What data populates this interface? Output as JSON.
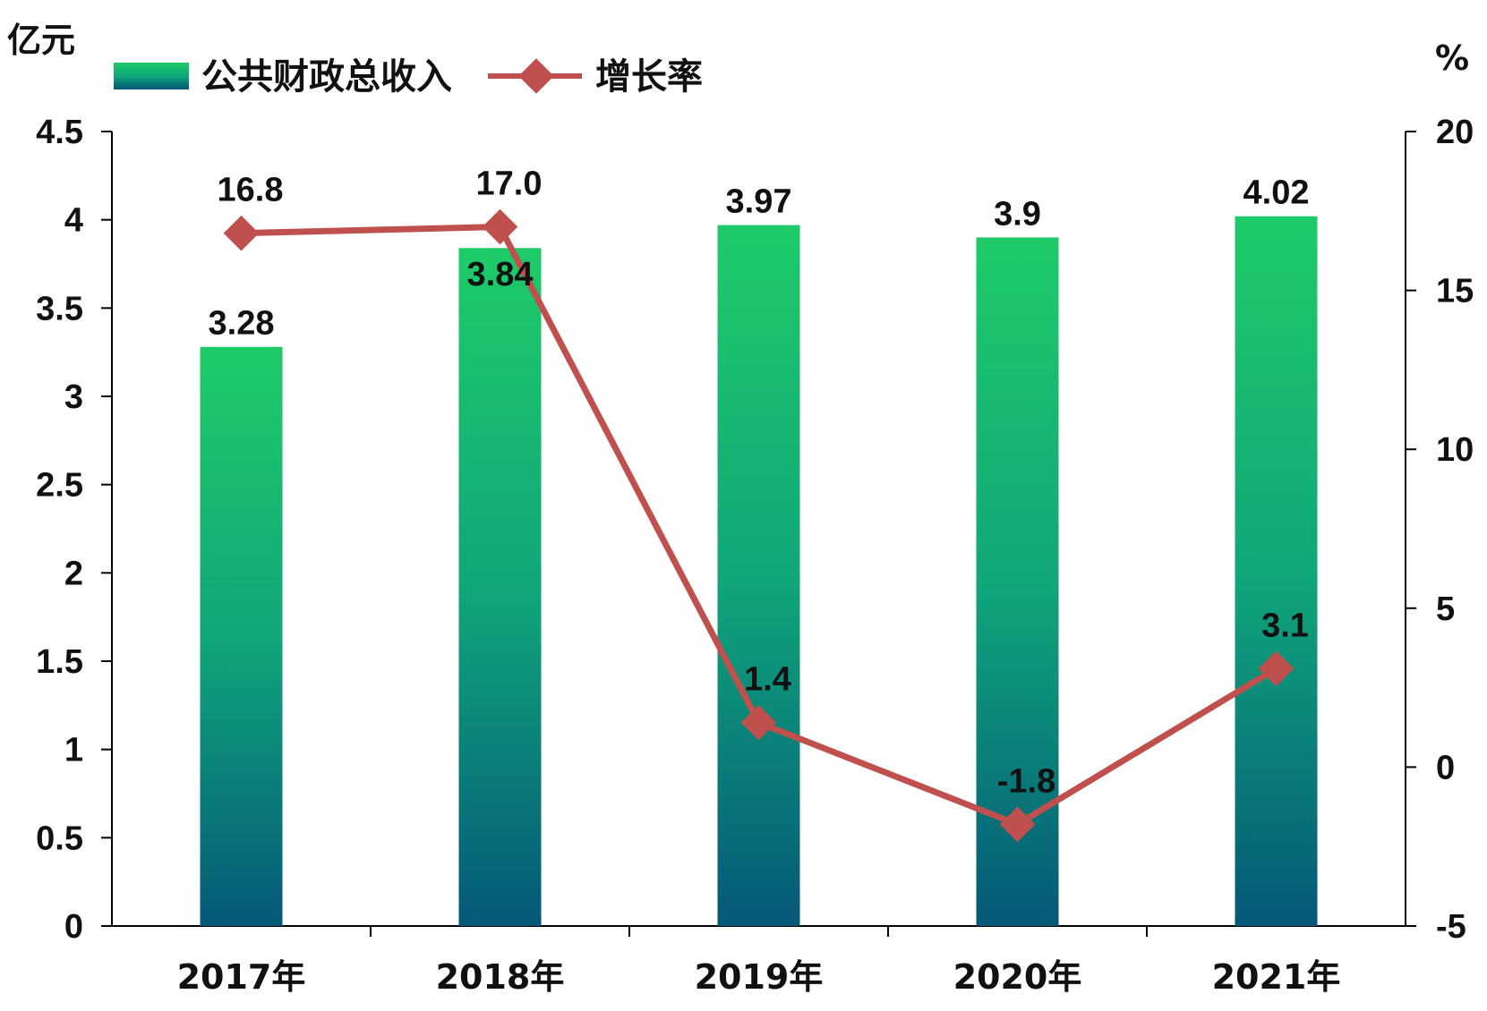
{
  "chart_data": {
    "type": "bar",
    "categories": [
      "2017年",
      "2018年",
      "2019年",
      "2020年",
      "2021年"
    ],
    "series": [
      {
        "name": "公共财政总收入",
        "type": "bar",
        "axis": "left",
        "values": [
          3.28,
          3.84,
          3.97,
          3.9,
          4.02
        ],
        "labels": [
          "3.28",
          "3.84",
          "3.97",
          "3.9",
          "4.02"
        ]
      },
      {
        "name": "增长率",
        "type": "line",
        "axis": "right",
        "values": [
          16.8,
          17.0,
          1.4,
          -1.8,
          3.1
        ],
        "labels": [
          "16.8",
          "17.0",
          "1.4",
          "-1.8",
          "3.1"
        ]
      }
    ],
    "ylabel": "亿元",
    "y2label": "%",
    "ylim": [
      0,
      4.5
    ],
    "y2lim": [
      -5,
      20
    ],
    "yticks": [
      "0",
      "0.5",
      "1",
      "1.5",
      "2",
      "2.5",
      "3",
      "3.5",
      "4",
      "4.5"
    ],
    "y2ticks": [
      "-5",
      "0",
      "5",
      "10",
      "15",
      "20"
    ],
    "grid": false,
    "legend_position": "top",
    "colors": {
      "bar_top": "#1ecb68",
      "bar_mid": "#10a77a",
      "bar_bottom": "#055878",
      "line": "#c0504d",
      "axis": "#000000"
    }
  }
}
